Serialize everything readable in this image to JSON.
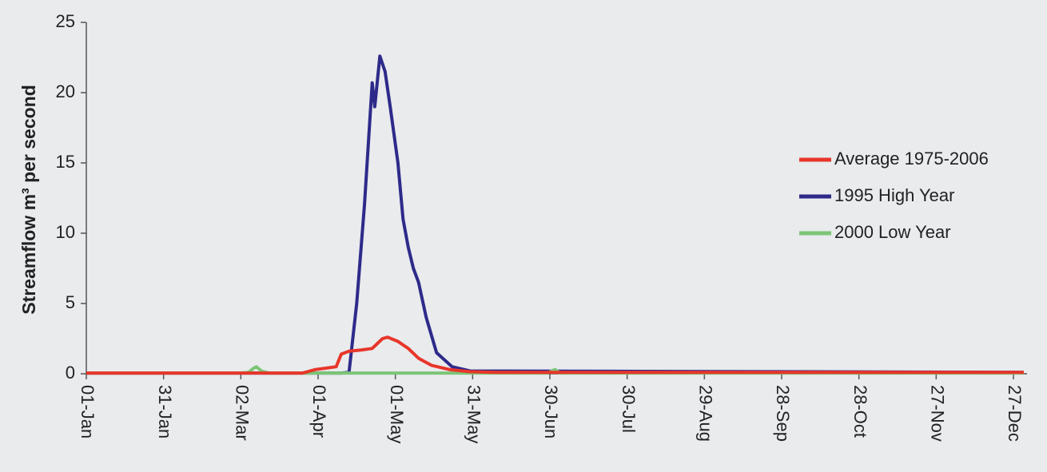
{
  "chart_data": {
    "type": "line",
    "y_label": "Streamflow m³ per second",
    "xlim": [
      1,
      365
    ],
    "xticks": [
      {
        "value": 1,
        "label": "01-Jan"
      },
      {
        "value": 31,
        "label": "31-Jan"
      },
      {
        "value": 61,
        "label": "02-Mar"
      },
      {
        "value": 91,
        "label": "01-Apr"
      },
      {
        "value": 121,
        "label": "01-May"
      },
      {
        "value": 151,
        "label": "31-May"
      },
      {
        "value": 181,
        "label": "30-Jun"
      },
      {
        "value": 211,
        "label": "30-Jul"
      },
      {
        "value": 241,
        "label": "29-Aug"
      },
      {
        "value": 271,
        "label": "28-Sep"
      },
      {
        "value": 301,
        "label": "28-Oct"
      },
      {
        "value": 331,
        "label": "27-Nov"
      },
      {
        "value": 361,
        "label": "27-Dec"
      }
    ],
    "ylim": [
      0,
      25
    ],
    "yticks": [
      0,
      5,
      10,
      15,
      20,
      25
    ],
    "legend": "right",
    "series": [
      {
        "name": "1995 High Year",
        "color": "#2e2a8a",
        "x": [
          1,
          100,
          103,
          106,
          109,
          112,
          113,
          115,
          117,
          119,
          122,
          124,
          126,
          128,
          130,
          133,
          137,
          143,
          150,
          365
        ],
        "values": [
          0.05,
          0.05,
          0.1,
          5,
          12,
          20.7,
          19,
          22.6,
          21.5,
          19,
          15,
          11,
          9,
          7.5,
          6.5,
          4,
          1.5,
          0.5,
          0.2,
          0.1
        ]
      },
      {
        "name": "2000 Low Year",
        "color": "#7cc576",
        "x": [
          1,
          60,
          64,
          66,
          67,
          69,
          72,
          100,
          180,
          183,
          185,
          365
        ],
        "values": [
          0.05,
          0.05,
          0.1,
          0.4,
          0.5,
          0.2,
          0.05,
          0.05,
          0.05,
          0.3,
          0.05,
          0.05
        ]
      },
      {
        "name": "Average 1975-2006",
        "color": "#e8362a",
        "x": [
          1,
          85,
          90,
          94,
          98,
          100,
          103,
          108,
          112,
          116,
          118,
          122,
          126,
          130,
          135,
          142,
          150,
          160,
          200,
          365
        ],
        "values": [
          0.05,
          0.05,
          0.3,
          0.4,
          0.5,
          1.4,
          1.6,
          1.7,
          1.8,
          2.5,
          2.6,
          2.3,
          1.8,
          1.1,
          0.6,
          0.3,
          0.15,
          0.1,
          0.1,
          0.1
        ]
      }
    ]
  }
}
